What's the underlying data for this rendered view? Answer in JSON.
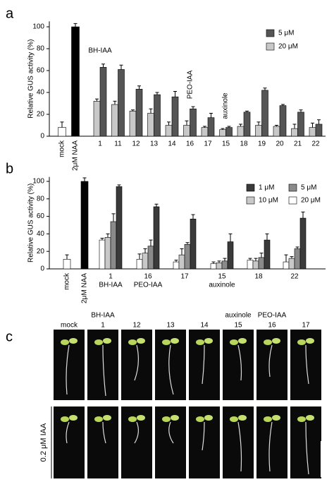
{
  "chart_data": [
    {
      "type": "bar",
      "label": "a",
      "ylabel": "Relative GUS activity (%)",
      "categories": [
        "mock",
        "2μM NAA",
        "1",
        "11",
        "12",
        "13",
        "14",
        "16",
        "17",
        "15",
        "18",
        "19",
        "20",
        "21",
        "22"
      ],
      "control_values": [
        8,
        100
      ],
      "control_errors": [
        5,
        3
      ],
      "control_colors": [
        "#ffffff",
        "#000000"
      ],
      "series": [
        {
          "name": "20 μM",
          "color": "#c8c8c8",
          "values": [
            null,
            null,
            32,
            29,
            23,
            21,
            10,
            10,
            8,
            6,
            9,
            10,
            9,
            7,
            8
          ],
          "errors": [
            null,
            null,
            2,
            3,
            1,
            4,
            3,
            4,
            1,
            1,
            2,
            3,
            1,
            4,
            4
          ]
        },
        {
          "name": "5 μM",
          "color": "#555555",
          "values": [
            null,
            null,
            63,
            61,
            43,
            38,
            36,
            25,
            17,
            8,
            22,
            42,
            28,
            22,
            11
          ],
          "errors": [
            null,
            null,
            3,
            4,
            3,
            2,
            5,
            2,
            4,
            1,
            1,
            2,
            1,
            2,
            4
          ]
        }
      ],
      "annotations": [
        "BH-IAA",
        "PEO-IAA",
        "auxinole"
      ],
      "ylim": [
        0,
        105
      ],
      "yticks": [
        0,
        20,
        40,
        60,
        80,
        100
      ]
    },
    {
      "type": "bar",
      "label": "b",
      "ylabel": "Relative GUS activity (%)",
      "categories": [
        "mock",
        "2μM NAA",
        "1",
        "16",
        "17",
        "15",
        "18",
        "22"
      ],
      "sublabels": [
        null,
        null,
        "BH-IAA",
        "PEO-IAA",
        null,
        "auxinole",
        null,
        null
      ],
      "control_values": [
        11,
        100
      ],
      "control_errors": [
        5,
        4
      ],
      "control_colors": [
        "#ffffff",
        "#000000"
      ],
      "series": [
        {
          "name": "20 μM",
          "color": "#ffffff",
          "values": [
            null,
            null,
            33,
            11,
            8,
            6,
            10,
            8
          ],
          "errors": [
            null,
            null,
            2,
            6,
            2,
            2,
            2,
            8
          ]
        },
        {
          "name": "10 μM",
          "color": "#c8c8c8",
          "values": [
            null,
            null,
            36,
            18,
            16,
            7,
            9,
            12
          ],
          "errors": [
            null,
            null,
            4,
            5,
            7,
            2,
            3,
            2
          ]
        },
        {
          "name": "5 μM",
          "color": "#8a8a8a",
          "values": [
            null,
            null,
            54,
            26,
            28,
            9,
            13,
            23
          ],
          "errors": [
            null,
            null,
            9,
            7,
            2,
            3,
            5,
            2
          ]
        },
        {
          "name": "1 μM",
          "color": "#3a3a3a",
          "values": [
            null,
            null,
            94,
            71,
            57,
            31,
            33,
            58
          ],
          "errors": [
            null,
            null,
            2,
            3,
            5,
            9,
            7,
            7
          ]
        }
      ],
      "ylim": [
        0,
        105
      ],
      "yticks": [
        0,
        20,
        40,
        60,
        80,
        100
      ]
    }
  ],
  "panel_c": {
    "label": "c",
    "top_labels": [
      "BH-IAA",
      "auxinole",
      "PEO-IAA"
    ],
    "columns": [
      "mock",
      "1",
      "12",
      "13",
      "14",
      "15",
      "16",
      "17"
    ],
    "row_label": "0.2 μM IAA"
  }
}
